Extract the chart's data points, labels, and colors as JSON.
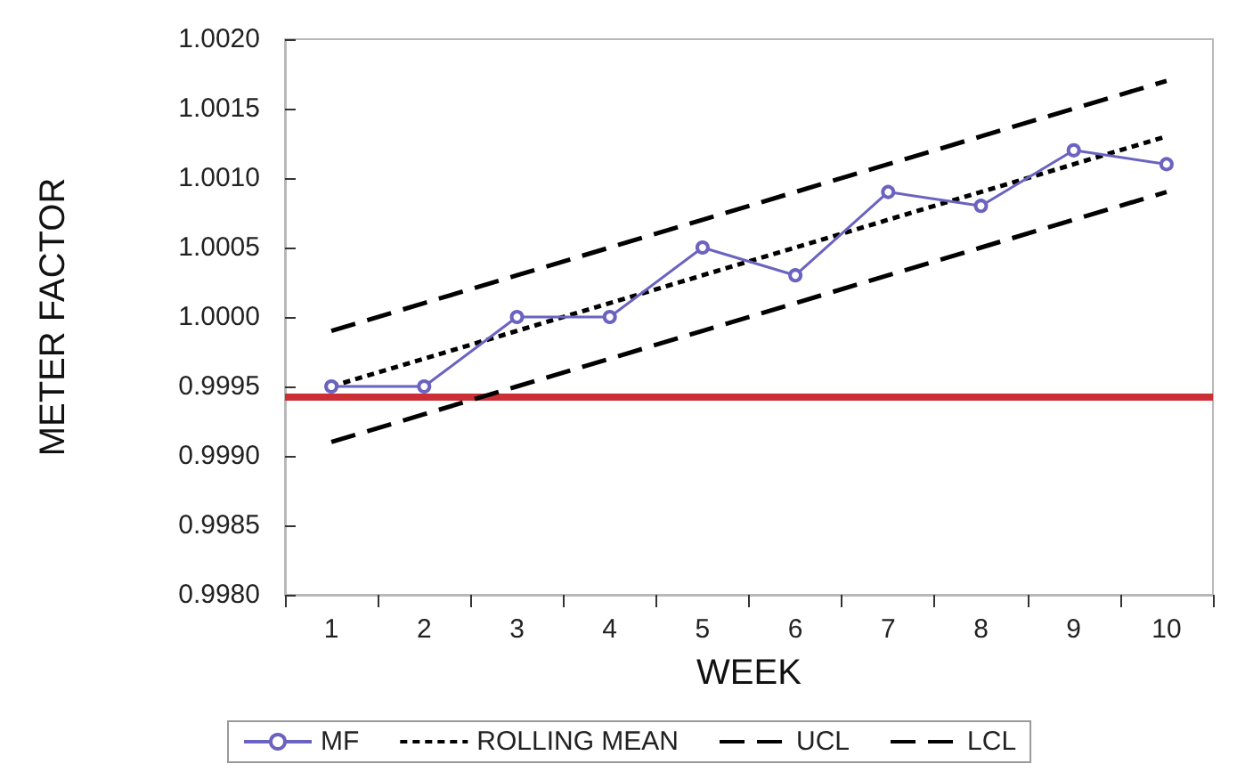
{
  "chart_data": {
    "type": "line",
    "xlabel": "WEEK",
    "ylabel": "METER FACTOR",
    "categories": [
      "1",
      "2",
      "3",
      "4",
      "5",
      "6",
      "7",
      "8",
      "9",
      "10"
    ],
    "series": [
      {
        "name": "MF",
        "color": "#6a63c0",
        "marker": "circle",
        "line_style": "solid",
        "values": [
          0.9995,
          0.9995,
          1.0,
          1.0,
          1.0005,
          1.0003,
          1.0009,
          1.0008,
          1.0012,
          1.0011
        ]
      },
      {
        "name": "ROLLING MEAN",
        "color": "#000000",
        "marker": "none",
        "line_style": "dotted",
        "values": [
          0.9995,
          0.9997,
          0.9999,
          1.0001,
          1.0003,
          1.0005,
          1.0007,
          1.0009,
          1.0011,
          1.0013
        ]
      },
      {
        "name": "UCL",
        "color": "#000000",
        "marker": "none",
        "line_style": "dashed",
        "values": [
          0.9999,
          1.0001,
          1.0003,
          1.0005,
          1.0007,
          1.0009,
          1.0011,
          1.0013,
          1.0015,
          1.0017
        ]
      },
      {
        "name": "LCL",
        "color": "#000000",
        "marker": "none",
        "line_style": "dashed",
        "values": [
          0.9991,
          0.9993,
          0.9995,
          0.9997,
          0.9999,
          1.0001,
          1.0003,
          1.0005,
          1.0007,
          1.0009
        ]
      }
    ],
    "ylim": [
      0.998,
      1.002
    ],
    "yticks": [
      {
        "value": 0.998,
        "label": "0.9980"
      },
      {
        "value": 0.9985,
        "label": "0.9985"
      },
      {
        "value": 0.999,
        "label": "0.9990"
      },
      {
        "value": 0.9995,
        "label": "0.9995"
      },
      {
        "value": 1.0,
        "label": "1.0000"
      },
      {
        "value": 1.0005,
        "label": "1.0005"
      },
      {
        "value": 1.001,
        "label": "1.0010"
      },
      {
        "value": 1.0015,
        "label": "1.0015"
      },
      {
        "value": 1.002,
        "label": "1.0020"
      }
    ],
    "ref_lines": [
      {
        "axis": "y",
        "value": 0.99943,
        "color": "#cc2f35",
        "line_style": "solid"
      }
    ],
    "grid": false,
    "legend": "bottom"
  }
}
